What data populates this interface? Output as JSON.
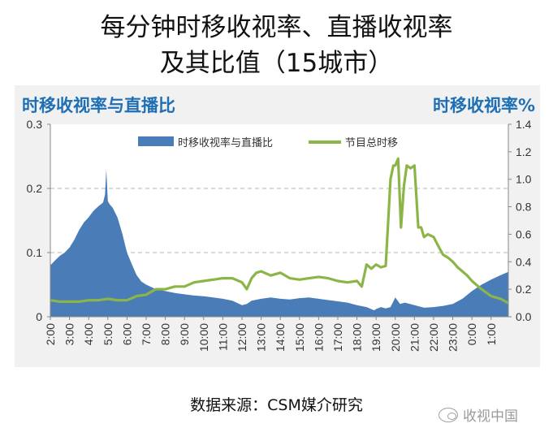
{
  "title_line1": "每分钟时移收视率、直播收视率",
  "title_line2": "及其比值（15城市）",
  "source": "数据来源：CSM媒介研究",
  "watermark": "收视中国",
  "colors": {
    "area": "#4a7db8",
    "line": "#8cb547",
    "axis_title": "#1f6fb5",
    "panel": "#f1f1f1"
  },
  "chart_data": {
    "type": "area+line",
    "left_axis_title": "时移收视率与直播比",
    "right_axis_title": "时移收视率%",
    "left_ylim": [
      0,
      0.3
    ],
    "left_ticks": [
      "0",
      "0.1",
      "0.2",
      "0.3"
    ],
    "right_ylim": [
      0,
      1.4
    ],
    "right_ticks": [
      "0.0",
      "0.2",
      "0.4",
      "0.6",
      "0.8",
      "1.0",
      "1.2",
      "1.4"
    ],
    "x_labels": [
      "2:00",
      "3:00",
      "4:00",
      "5:00",
      "6:00",
      "7:00",
      "8:00",
      "9:00",
      "10:00",
      "11:00",
      "12:00",
      "13:00",
      "14:00",
      "15:00",
      "16:00",
      "17:00",
      "18:00",
      "19:00",
      "20:00",
      "21:00",
      "22:00",
      "23:00",
      "0:00",
      "1:00"
    ],
    "grid": "dashed horizontal",
    "legend_position": "top",
    "series": [
      {
        "name": "时移收视率与直播比",
        "kind": "area",
        "axis": "left",
        "x": [
          2.0,
          2.25,
          2.5,
          2.75,
          3.0,
          3.25,
          3.5,
          3.75,
          4.0,
          4.25,
          4.5,
          4.75,
          4.85,
          4.92,
          5.0,
          5.1,
          5.25,
          5.5,
          5.75,
          6.0,
          6.25,
          6.5,
          6.75,
          7.0,
          7.5,
          8.0,
          8.5,
          9.0,
          9.5,
          10.0,
          10.5,
          11.0,
          11.5,
          12.0,
          12.25,
          12.5,
          13.0,
          13.5,
          14.0,
          14.5,
          15.0,
          15.5,
          16.0,
          16.5,
          17.0,
          17.5,
          18.0,
          18.5,
          18.9,
          19.0,
          19.25,
          19.5,
          19.75,
          20.0,
          20.25,
          20.5,
          21.0,
          21.5,
          22.0,
          22.5,
          23.0,
          23.5,
          24.0,
          24.5,
          25.0,
          25.5,
          25.9
        ],
        "values": [
          0.08,
          0.088,
          0.095,
          0.1,
          0.108,
          0.12,
          0.135,
          0.147,
          0.155,
          0.165,
          0.172,
          0.178,
          0.19,
          0.23,
          0.18,
          0.175,
          0.17,
          0.155,
          0.13,
          0.1,
          0.082,
          0.065,
          0.055,
          0.05,
          0.043,
          0.04,
          0.037,
          0.035,
          0.033,
          0.032,
          0.03,
          0.028,
          0.025,
          0.018,
          0.02,
          0.025,
          0.028,
          0.03,
          0.028,
          0.027,
          0.029,
          0.03,
          0.028,
          0.026,
          0.024,
          0.022,
          0.018,
          0.015,
          0.01,
          0.012,
          0.015,
          0.013,
          0.015,
          0.03,
          0.02,
          0.022,
          0.018,
          0.014,
          0.015,
          0.017,
          0.02,
          0.028,
          0.04,
          0.05,
          0.058,
          0.065,
          0.07
        ]
      },
      {
        "name": "节目总时移",
        "kind": "line",
        "axis": "right",
        "x": [
          2.0,
          2.5,
          3.0,
          3.5,
          4.0,
          4.5,
          5.0,
          5.5,
          6.0,
          6.5,
          7.0,
          7.5,
          8.0,
          8.5,
          9.0,
          9.5,
          10.0,
          10.5,
          11.0,
          11.5,
          12.0,
          12.25,
          12.5,
          12.75,
          13.0,
          13.5,
          14.0,
          14.5,
          15.0,
          15.5,
          16.0,
          16.5,
          17.0,
          17.5,
          18.0,
          18.25,
          18.5,
          18.75,
          19.0,
          19.25,
          19.5,
          19.75,
          19.9,
          20.0,
          20.15,
          20.3,
          20.45,
          20.6,
          20.8,
          21.0,
          21.2,
          21.35,
          21.5,
          21.7,
          22.0,
          22.3,
          22.5,
          22.75,
          23.0,
          23.25,
          23.5,
          23.75,
          24.0,
          24.5,
          25.0,
          25.5,
          25.9
        ],
        "values": [
          0.12,
          0.11,
          0.11,
          0.11,
          0.12,
          0.12,
          0.13,
          0.12,
          0.12,
          0.15,
          0.16,
          0.2,
          0.2,
          0.22,
          0.22,
          0.25,
          0.26,
          0.27,
          0.28,
          0.28,
          0.25,
          0.2,
          0.28,
          0.32,
          0.33,
          0.3,
          0.32,
          0.28,
          0.27,
          0.28,
          0.29,
          0.28,
          0.26,
          0.25,
          0.26,
          0.22,
          0.38,
          0.35,
          0.38,
          0.36,
          0.37,
          1.0,
          1.1,
          1.1,
          1.15,
          0.65,
          0.95,
          1.1,
          1.08,
          1.1,
          0.65,
          0.65,
          0.58,
          0.6,
          0.58,
          0.5,
          0.45,
          0.43,
          0.4,
          0.36,
          0.33,
          0.3,
          0.26,
          0.2,
          0.15,
          0.13,
          0.1
        ]
      }
    ]
  }
}
